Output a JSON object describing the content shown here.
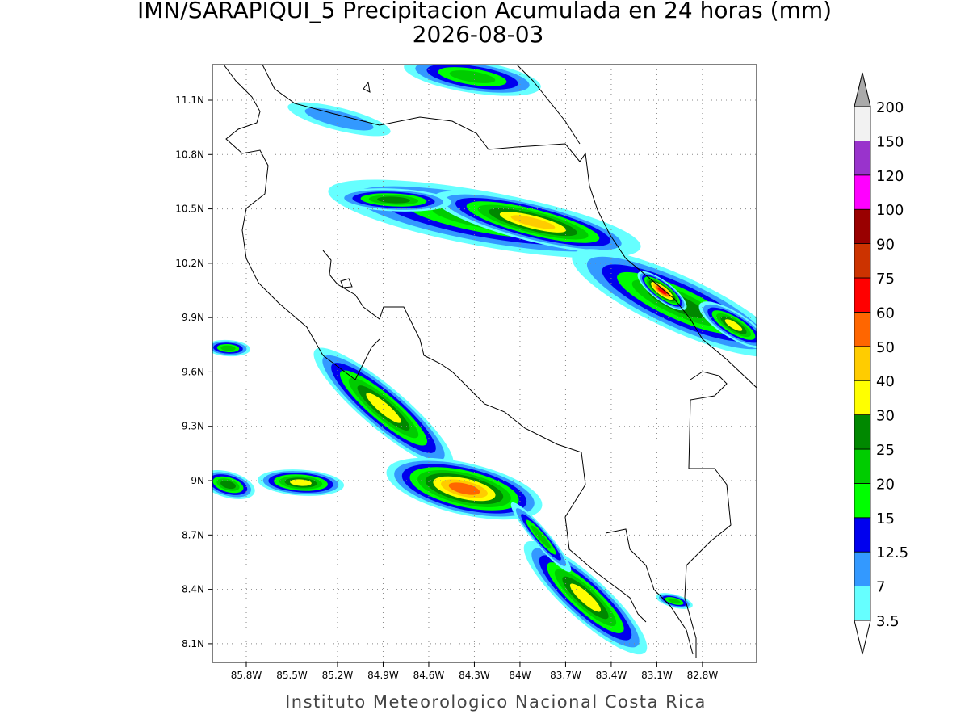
{
  "title": "IMN/SARAPIQUI_5 Precipitacion Acumulada en 24 horas (mm)",
  "subtitle": "2026-08-03",
  "footer": "Instituto Meteorologico Nacional Costa Rica",
  "map": {
    "xticks": [
      {
        "value": -85.8,
        "label": "85.8W"
      },
      {
        "value": -85.5,
        "label": "85.5W"
      },
      {
        "value": -85.2,
        "label": "85.2W"
      },
      {
        "value": -84.9,
        "label": "84.9W"
      },
      {
        "value": -84.6,
        "label": "84.6W"
      },
      {
        "value": -84.3,
        "label": "84.3W"
      },
      {
        "value": -84.0,
        "label": "84W"
      },
      {
        "value": -83.7,
        "label": "83.7W"
      },
      {
        "value": -83.4,
        "label": "83.4W"
      },
      {
        "value": -83.1,
        "label": "83.1W"
      },
      {
        "value": -82.8,
        "label": "82.8W"
      }
    ],
    "yticks": [
      {
        "value": 8.1,
        "label": "8.1N"
      },
      {
        "value": 8.4,
        "label": "8.4N"
      },
      {
        "value": 8.7,
        "label": "8.7N"
      },
      {
        "value": 9.0,
        "label": "9N"
      },
      {
        "value": 9.3,
        "label": "9.3N"
      },
      {
        "value": 9.6,
        "label": "9.6N"
      },
      {
        "value": 9.9,
        "label": "9.9N"
      },
      {
        "value": 10.2,
        "label": "10.2N"
      },
      {
        "value": 10.5,
        "label": "10.5N"
      },
      {
        "value": 10.8,
        "label": "10.8N"
      },
      {
        "value": 11.1,
        "label": "11.1N"
      }
    ]
  },
  "colorbar": {
    "levels": [
      3.5,
      7,
      12.5,
      15,
      20,
      25,
      30,
      40,
      50,
      60,
      75,
      90,
      100,
      120,
      150,
      200
    ],
    "colors": [
      "#ffffff",
      "#66ffff",
      "#3399ff",
      "#0000ee",
      "#00ff00",
      "#00cc00",
      "#008800",
      "#ffff00",
      "#ffcc00",
      "#ff6600",
      "#ff0000",
      "#cc3300",
      "#990000",
      "#ff00ff",
      "#9933cc",
      "#f2f2f2",
      "#aaaaaa"
    ]
  }
}
